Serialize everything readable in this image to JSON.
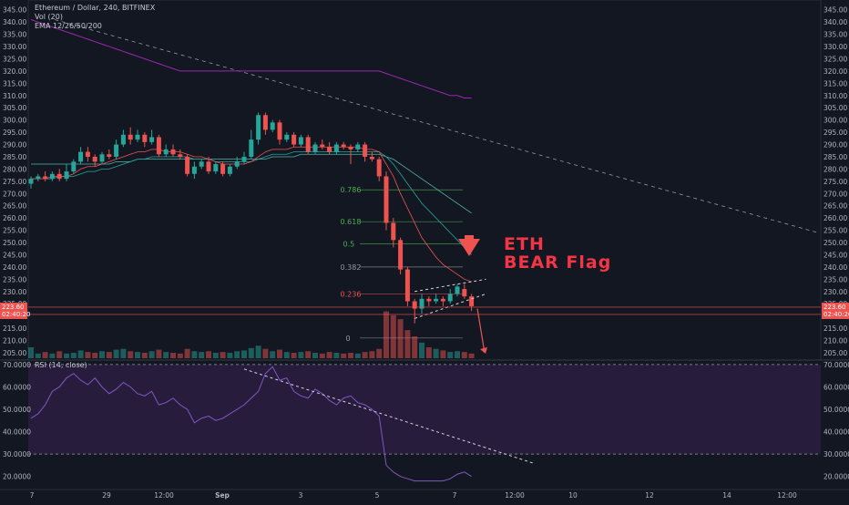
{
  "header": {
    "symbol": "Ethereum / Dollar, 240, BITFINEX",
    "vol": "Vol (20)",
    "ema": "EMA 12/26/50/200",
    "rsi": "RSI (14, close)"
  },
  "annotation": {
    "line1": "ETH",
    "line2": "BEAR Flag"
  },
  "colors": {
    "background": "#131722",
    "up": "#26a69a",
    "down": "#ef5350",
    "rsi_band": "#2a1d3f",
    "fib_green": "#4caf50",
    "fib_red": "#ef5350",
    "ema200": "#9c27b0",
    "price_label": "#ef5350"
  },
  "chart_data": [
    {
      "type": "candlestick",
      "title": "Ethereum / Dollar, 240, BITFINEX",
      "ylim": [
        202,
        349
      ],
      "yticks": [
        "345.00",
        "340.00",
        "335.00",
        "330.00",
        "325.00",
        "320.00",
        "315.00",
        "310.00",
        "305.00",
        "300.00",
        "295.00",
        "290.00",
        "285.00",
        "280.00",
        "275.00",
        "270.00",
        "265.00",
        "260.00",
        "255.00",
        "250.00",
        "245.00",
        "240.00",
        "235.00",
        "230.00",
        "225.00",
        "220.00",
        "215.00",
        "210.00",
        "205.00"
      ],
      "xticks": [
        "7",
        "29",
        "12:00",
        "Sep",
        "3",
        "5",
        "7",
        "12:00",
        "10",
        "12",
        "14",
        "12:00"
      ],
      "candles": [
        [
          274,
          276,
          272,
          277
        ],
        [
          276,
          277,
          275,
          278
        ],
        [
          277,
          276,
          275,
          279
        ],
        [
          276,
          278,
          275,
          279
        ],
        [
          278,
          276,
          275,
          280
        ],
        [
          276,
          279,
          275,
          282
        ],
        [
          279,
          283,
          278,
          284
        ],
        [
          283,
          287,
          282,
          289
        ],
        [
          287,
          285,
          283,
          289
        ],
        [
          285,
          283,
          281,
          286
        ],
        [
          283,
          286,
          282,
          287
        ],
        [
          286,
          285,
          284,
          288
        ],
        [
          285,
          290,
          284,
          292
        ],
        [
          290,
          294,
          289,
          296
        ],
        [
          294,
          292,
          290,
          297
        ],
        [
          292,
          294,
          291,
          296
        ],
        [
          294,
          291,
          289,
          295
        ],
        [
          291,
          293,
          290,
          296
        ],
        [
          293,
          286,
          285,
          294
        ],
        [
          286,
          288,
          285,
          290
        ],
        [
          288,
          286,
          285,
          290
        ],
        [
          286,
          285,
          284,
          288
        ],
        [
          285,
          278,
          277,
          286
        ],
        [
          278,
          281,
          276,
          283
        ],
        [
          281,
          283,
          280,
          284
        ],
        [
          283,
          279,
          278,
          285
        ],
        [
          279,
          282,
          278,
          283
        ],
        [
          282,
          278,
          277,
          283
        ],
        [
          278,
          281,
          277,
          282
        ],
        [
          281,
          283,
          280,
          285
        ],
        [
          283,
          285,
          282,
          287
        ],
        [
          285,
          292,
          284,
          296
        ],
        [
          292,
          302,
          290,
          303
        ],
        [
          302,
          296,
          294,
          303
        ],
        [
          296,
          299,
          295,
          300
        ],
        [
          299,
          292,
          290,
          300
        ],
        [
          292,
          294,
          291,
          295
        ],
        [
          294,
          290,
          289,
          295
        ],
        [
          290,
          293,
          289,
          294
        ],
        [
          293,
          287,
          286,
          294
        ],
        [
          287,
          290,
          286,
          291
        ],
        [
          290,
          289,
          288,
          292
        ],
        [
          289,
          287,
          286,
          291
        ],
        [
          287,
          290,
          286,
          291
        ],
        [
          290,
          289,
          288,
          291
        ],
        [
          289,
          288,
          282,
          290
        ],
        [
          288,
          290,
          287,
          291
        ],
        [
          290,
          285,
          283,
          291
        ],
        [
          285,
          284,
          283,
          287
        ],
        [
          284,
          277,
          275,
          285
        ],
        [
          277,
          258,
          255,
          279
        ],
        [
          258,
          251,
          248,
          260
        ],
        [
          251,
          239,
          237,
          252
        ],
        [
          239,
          226,
          224,
          240
        ],
        [
          226,
          223,
          217,
          227
        ],
        [
          223,
          227,
          221,
          229
        ],
        [
          227,
          226,
          224,
          228
        ],
        [
          226,
          227,
          225,
          229
        ],
        [
          227,
          226,
          224,
          228
        ],
        [
          226,
          229,
          225,
          231
        ],
        [
          229,
          232,
          228,
          233
        ],
        [
          231,
          228,
          227,
          233
        ],
        [
          228,
          224,
          222,
          229
        ]
      ],
      "ema": {
        "ema12": [
          276,
          276,
          276,
          277,
          277,
          277,
          278,
          280,
          281,
          281,
          282,
          283,
          284,
          285,
          286,
          287,
          287,
          288,
          288,
          287,
          287,
          287,
          286,
          285,
          285,
          284,
          283,
          282,
          282,
          282,
          282,
          283,
          285,
          287,
          288,
          288,
          288,
          289,
          289,
          289,
          289,
          289,
          289,
          289,
          289,
          289,
          289,
          288,
          288,
          287,
          282,
          277,
          270,
          264,
          258,
          252,
          248,
          244,
          241,
          239,
          237,
          235,
          234
        ],
        "ema26": [
          276,
          276,
          276,
          276,
          277,
          277,
          277,
          278,
          279,
          279,
          280,
          280,
          281,
          282,
          283,
          284,
          284,
          285,
          285,
          285,
          285,
          285,
          285,
          284,
          284,
          284,
          283,
          283,
          283,
          283,
          283,
          283,
          284,
          285,
          286,
          286,
          286,
          287,
          287,
          287,
          287,
          287,
          287,
          287,
          287,
          287,
          287,
          287,
          287,
          287,
          285,
          282,
          278,
          274,
          270,
          266,
          263,
          260,
          257,
          254,
          251,
          248,
          245
        ],
        "ema50": [
          282,
          282,
          282,
          282,
          282,
          282,
          282,
          282,
          282,
          282,
          282,
          282,
          283,
          283,
          283,
          284,
          284,
          284,
          284,
          284,
          284,
          284,
          284,
          284,
          284,
          284,
          284,
          284,
          284,
          284,
          284,
          284,
          284,
          284,
          285,
          285,
          285,
          285,
          286,
          286,
          286,
          286,
          286,
          286,
          286,
          286,
          286,
          286,
          286,
          286,
          285,
          284,
          282,
          280,
          278,
          276,
          274,
          272,
          270,
          268,
          266,
          264,
          262
        ],
        "ema200": [
          341,
          340,
          339,
          338,
          337,
          336,
          335,
          334,
          333,
          332,
          331,
          330,
          329,
          328,
          327,
          326,
          325,
          324,
          323,
          322,
          321,
          320,
          320,
          320,
          320,
          320,
          320,
          320,
          320,
          320,
          320,
          320,
          320,
          320,
          320,
          320,
          320,
          320,
          320,
          320,
          320,
          320,
          320,
          320,
          320,
          320,
          320,
          320,
          320,
          320,
          319,
          318,
          317,
          316,
          315,
          314,
          313,
          312,
          311,
          310,
          310,
          309,
          309
        ]
      },
      "fib_levels": [
        {
          "label": "0.786",
          "price": 271.5
        },
        {
          "label": "0.618",
          "price": 258.5
        },
        {
          "label": "0.5",
          "price": 249.5
        },
        {
          "label": "0.382",
          "price": 240
        },
        {
          "label": "0.236",
          "price": 229
        },
        {
          "label": "0",
          "price": 211
        }
      ],
      "price_labels": [
        "223.60",
        "02:40:20"
      ],
      "current_price": 223.6
    },
    {
      "type": "bar",
      "title": "Vol (20)",
      "volumes": [
        14,
        6,
        8,
        6,
        9,
        6,
        7,
        10,
        8,
        7,
        9,
        8,
        11,
        12,
        9,
        8,
        7,
        9,
        11,
        8,
        7,
        6,
        12,
        9,
        8,
        9,
        7,
        8,
        7,
        9,
        10,
        13,
        16,
        12,
        9,
        11,
        8,
        7,
        8,
        9,
        7,
        6,
        8,
        7,
        6,
        7,
        6,
        8,
        9,
        12,
        60,
        55,
        50,
        36,
        28,
        20,
        14,
        12,
        10,
        8,
        9,
        8,
        6
      ]
    },
    {
      "type": "line",
      "title": "RSI (14, close)",
      "ylim": [
        15,
        72
      ],
      "yticks": [
        "70.0000",
        "60.0000",
        "50.0000",
        "40.0000",
        "30.0000",
        "20.0000"
      ],
      "band": [
        30,
        70
      ],
      "values": [
        46,
        48,
        52,
        58,
        60,
        64,
        66,
        63,
        61,
        64,
        60,
        57,
        59,
        62,
        60,
        57,
        56,
        58,
        52,
        53,
        55,
        52,
        50,
        44,
        46,
        47,
        45,
        46,
        48,
        50,
        52,
        55,
        58,
        66,
        69,
        63,
        64,
        58,
        56,
        55,
        59,
        57,
        54,
        52,
        55,
        56,
        53,
        52,
        50,
        47,
        25,
        22,
        20,
        19,
        18,
        18,
        18,
        18,
        18,
        19,
        21,
        22,
        20
      ]
    }
  ]
}
